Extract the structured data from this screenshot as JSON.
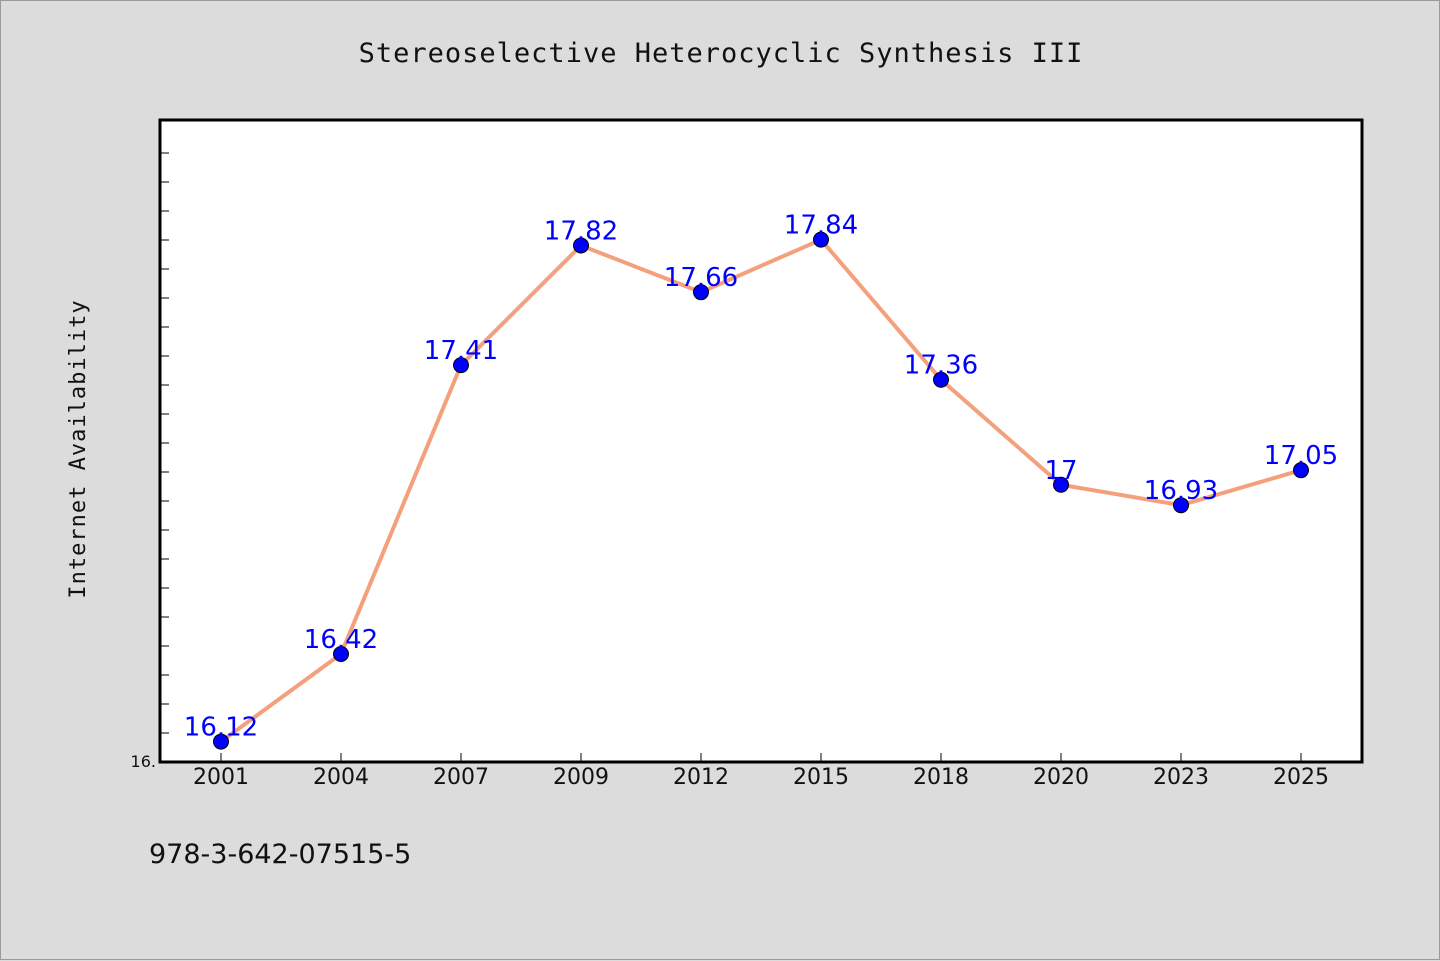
{
  "chart_data": {
    "type": "line",
    "title": "Stereoselective Heterocyclic Synthesis III",
    "xlabel": "",
    "ylabel": "Internet Availability",
    "categories": [
      "2001",
      "2004",
      "2007",
      "2009",
      "2012",
      "2015",
      "2018",
      "2020",
      "2023",
      "2025"
    ],
    "series": [
      {
        "values": [
          16.12,
          16.42,
          17.41,
          17.82,
          17.66,
          17.84,
          17.36,
          17.0,
          16.93,
          17.05
        ]
      }
    ],
    "data_labels": [
      "16.12",
      "16.42",
      "17.41",
      "17.82",
      "17.66",
      "17.84",
      "17.36",
      "17",
      "16.93",
      "17.05"
    ],
    "ylim": [
      16.05,
      18.25
    ],
    "y_tick_label": "16.",
    "grid": false,
    "legend": "none",
    "colors": {
      "line": "#f4a07c",
      "marker": "#0000ff",
      "data_label": "#0000ff",
      "background": "#dcdcdc",
      "plot_background": "#ffffff"
    }
  },
  "footnote": "978-3-642-07515-5"
}
